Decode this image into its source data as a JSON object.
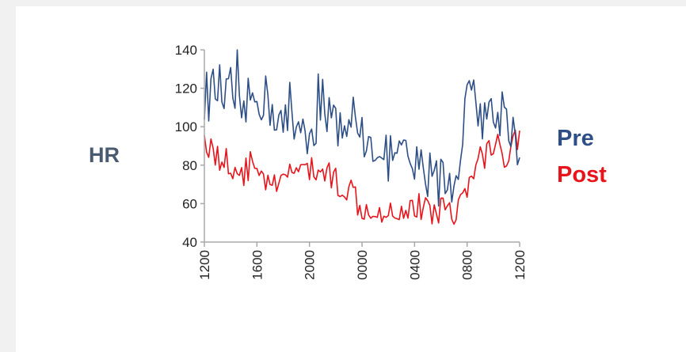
{
  "chart_data": {
    "type": "line",
    "title": "",
    "ylabel": "HR",
    "xlabel": "",
    "ylim": [
      40,
      140
    ],
    "yticks": [
      "40",
      "60",
      "80",
      "100",
      "120",
      "140"
    ],
    "xticks": [
      "1200",
      "1600",
      "2000",
      "0000",
      "0400",
      "0800",
      "1200"
    ],
    "grid": false,
    "legend_position": "right",
    "x": [
      "12:00",
      "13:00",
      "14:00",
      "15:00",
      "16:00",
      "17:00",
      "18:00",
      "19:00",
      "20:00",
      "21:00",
      "22:00",
      "23:00",
      "00:00",
      "01:00",
      "02:00",
      "03:00",
      "04:00",
      "05:00",
      "06:00",
      "07:00",
      "08:00",
      "09:00",
      "10:00",
      "11:00",
      "12:00"
    ],
    "series": [
      {
        "name": "Pre",
        "color": "#2e4f86",
        "values": [
          115,
          120,
          112,
          108,
          118,
          112,
          100,
          102,
          98,
          110,
          104,
          100,
          95,
          92,
          85,
          84,
          78,
          76,
          72,
          70,
          112,
          108,
          105,
          110,
          84
        ]
      },
      {
        "name": "Post",
        "color": "#e8141b",
        "values": [
          95,
          84,
          80,
          76,
          82,
          67,
          70,
          80,
          76,
          78,
          72,
          68,
          59,
          58,
          57,
          57,
          59,
          56,
          58,
          57,
          66,
          84,
          90,
          86,
          98
        ]
      }
    ]
  }
}
